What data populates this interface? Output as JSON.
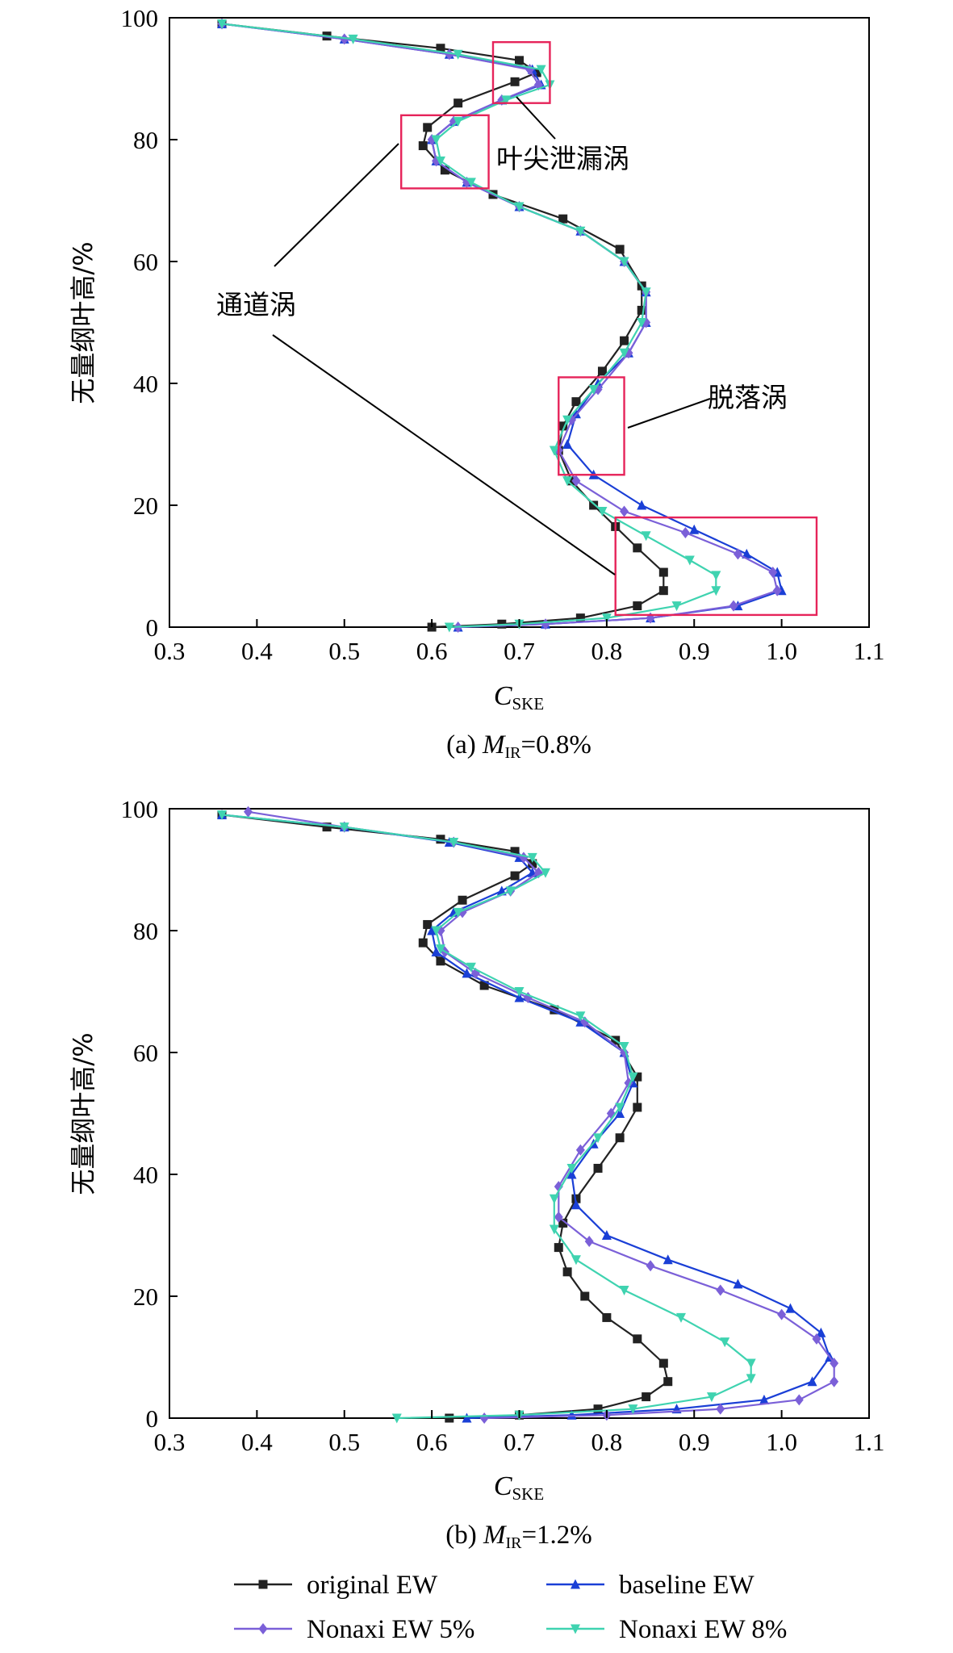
{
  "chart_data": [
    {
      "type": "line",
      "panel_id": "a",
      "caption": {
        "prefix": "(a) ",
        "var": "M",
        "sub": "IR",
        "rest": "=0.8%"
      },
      "xlabel": {
        "main": "C",
        "sub": "SKE"
      },
      "ylabel": "无量纲叶高/%",
      "xlim": [
        0.3,
        1.1
      ],
      "ylim": [
        0,
        100
      ],
      "xticks": [
        "0.3",
        "0.4",
        "0.5",
        "0.6",
        "0.7",
        "0.8",
        "0.9",
        "1.0",
        "1.1"
      ],
      "yticks": [
        "0",
        "20",
        "40",
        "60",
        "80",
        "100"
      ],
      "grid": false,
      "annotations": [
        {
          "text": "叶尖泄漏涡"
        },
        {
          "text": "通道涡"
        },
        {
          "text": "脱落涡"
        }
      ],
      "boxes": [
        {
          "x0": 0.67,
          "x1": 0.735,
          "y0": 86,
          "y1": 96
        },
        {
          "x0": 0.565,
          "x1": 0.665,
          "y0": 72,
          "y1": 84
        },
        {
          "x0": 0.745,
          "x1": 0.82,
          "y0": 25,
          "y1": 41
        },
        {
          "x0": 0.81,
          "x1": 1.04,
          "y0": 2,
          "y1": 18
        }
      ],
      "series": [
        {
          "name": "original EW",
          "x": [
            0.6,
            0.68,
            0.77,
            0.835,
            0.865,
            0.865,
            0.835,
            0.81,
            0.785,
            0.76,
            0.745,
            0.75,
            0.765,
            0.795,
            0.82,
            0.84,
            0.84,
            0.815,
            0.75,
            0.67,
            0.615,
            0.59,
            0.595,
            0.63,
            0.695,
            0.72,
            0.7,
            0.61,
            0.48,
            0.36
          ],
          "y": [
            0,
            0.5,
            1.5,
            3.5,
            6,
            9,
            13,
            16.5,
            20,
            24,
            29,
            33,
            37,
            42,
            47,
            52,
            56,
            62,
            67,
            71,
            75,
            79,
            82,
            86,
            89.5,
            91,
            93,
            95,
            97,
            99
          ]
        },
        {
          "name": "baseline EW",
          "x": [
            0.63,
            0.73,
            0.85,
            0.95,
            1.0,
            0.995,
            0.96,
            0.9,
            0.84,
            0.785,
            0.755,
            0.765,
            0.79,
            0.825,
            0.845,
            0.845,
            0.82,
            0.77,
            0.7,
            0.64,
            0.605,
            0.6,
            0.625,
            0.68,
            0.725,
            0.715,
            0.62,
            0.5,
            0.36
          ],
          "y": [
            0,
            0.5,
            1.5,
            3.5,
            6,
            9,
            12,
            16,
            20,
            25,
            30,
            35,
            40,
            45,
            50,
            55,
            60,
            65,
            69,
            73,
            76.5,
            80,
            83,
            86.5,
            89,
            91.5,
            94,
            96.5,
            99
          ]
        },
        {
          "name": "Nonaxi EW 5%",
          "x": [
            0.63,
            0.73,
            0.85,
            0.945,
            0.995,
            0.99,
            0.95,
            0.89,
            0.82,
            0.765,
            0.745,
            0.76,
            0.79,
            0.825,
            0.845,
            0.845,
            0.82,
            0.77,
            0.7,
            0.64,
            0.605,
            0.6,
            0.625,
            0.68,
            0.722,
            0.712,
            0.62,
            0.5,
            0.36
          ],
          "y": [
            0,
            0.5,
            1.5,
            3.5,
            6,
            9,
            12,
            15.5,
            19,
            24,
            29,
            34,
            39,
            45,
            50,
            55,
            60,
            65,
            69,
            73,
            76.5,
            80,
            83,
            86.5,
            89,
            91.5,
            94,
            96.5,
            99
          ]
        },
        {
          "name": "Nonaxi EW 8%",
          "x": [
            0.62,
            0.7,
            0.8,
            0.88,
            0.925,
            0.925,
            0.895,
            0.845,
            0.795,
            0.755,
            0.74,
            0.755,
            0.785,
            0.82,
            0.84,
            0.845,
            0.82,
            0.77,
            0.7,
            0.645,
            0.61,
            0.605,
            0.63,
            0.685,
            0.735,
            0.725,
            0.63,
            0.51,
            0.36
          ],
          "y": [
            0,
            0.5,
            1.5,
            3.5,
            6,
            8.5,
            11,
            15,
            19,
            24,
            29,
            34,
            39,
            45,
            50,
            55,
            60,
            65,
            69,
            73,
            76.5,
            80,
            83,
            86.5,
            89,
            91.5,
            94,
            96.5,
            99
          ]
        }
      ]
    },
    {
      "type": "line",
      "panel_id": "b",
      "caption": {
        "prefix": "(b)  ",
        "var": "M",
        "sub": "IR",
        "rest": "=1.2%"
      },
      "xlabel": {
        "main": "C",
        "sub": "SKE"
      },
      "ylabel": "无量纲叶高/%",
      "xlim": [
        0.3,
        1.1
      ],
      "ylim": [
        0,
        100
      ],
      "xticks": [
        "0.3",
        "0.4",
        "0.5",
        "0.6",
        "0.7",
        "0.8",
        "0.9",
        "1.0",
        "1.1"
      ],
      "yticks": [
        "0",
        "20",
        "40",
        "60",
        "80",
        "100"
      ],
      "grid": false,
      "annotations": [],
      "boxes": [],
      "series": [
        {
          "name": "original EW",
          "x": [
            0.62,
            0.7,
            0.79,
            0.845,
            0.87,
            0.865,
            0.835,
            0.8,
            0.775,
            0.755,
            0.745,
            0.75,
            0.765,
            0.79,
            0.815,
            0.835,
            0.835,
            0.81,
            0.74,
            0.66,
            0.61,
            0.59,
            0.595,
            0.635,
            0.695,
            0.715,
            0.695,
            0.61,
            0.48,
            0.36
          ],
          "y": [
            0,
            0.5,
            1.5,
            3.5,
            6,
            9,
            13,
            16.5,
            20,
            24,
            28,
            32,
            36,
            41,
            46,
            51,
            56,
            62,
            67,
            71,
            75,
            78,
            81,
            85,
            89,
            91,
            93,
            95,
            97,
            99
          ]
        },
        {
          "name": "baseline EW",
          "x": [
            0.64,
            0.76,
            0.88,
            0.98,
            1.035,
            1.055,
            1.045,
            1.01,
            0.95,
            0.87,
            0.8,
            0.765,
            0.76,
            0.785,
            0.815,
            0.83,
            0.82,
            0.77,
            0.7,
            0.64,
            0.605,
            0.6,
            0.625,
            0.68,
            0.715,
            0.7,
            0.62,
            0.5,
            0.36
          ],
          "y": [
            0,
            0.5,
            1.5,
            3,
            6,
            10,
            14,
            18,
            22,
            26,
            30,
            35,
            40,
            45,
            50,
            55,
            60,
            65,
            69,
            73,
            76.5,
            80,
            83,
            86.5,
            89.5,
            92,
            94.5,
            97,
            99
          ]
        },
        {
          "name": "Nonaxi EW 5%",
          "x": [
            0.66,
            0.8,
            0.93,
            1.02,
            1.06,
            1.06,
            1.04,
            1.0,
            0.93,
            0.85,
            0.78,
            0.745,
            0.745,
            0.77,
            0.805,
            0.825,
            0.82,
            0.775,
            0.71,
            0.65,
            0.615,
            0.61,
            0.635,
            0.69,
            0.722,
            0.705,
            0.625,
            0.5,
            0.39
          ],
          "y": [
            0,
            0.5,
            1.5,
            3,
            6,
            9,
            13,
            17,
            21,
            25,
            29,
            33,
            38,
            44,
            50,
            55,
            60,
            65,
            69,
            73,
            76.5,
            80,
            83,
            86.5,
            89.5,
            92,
            94.5,
            97,
            99.5
          ]
        },
        {
          "name": "Nonaxi EW 8%",
          "x": [
            0.56,
            0.7,
            0.83,
            0.92,
            0.965,
            0.965,
            0.935,
            0.885,
            0.82,
            0.765,
            0.74,
            0.74,
            0.76,
            0.79,
            0.815,
            0.83,
            0.82,
            0.77,
            0.7,
            0.645,
            0.61,
            0.605,
            0.63,
            0.69,
            0.73,
            0.715,
            0.625,
            0.5,
            0.36
          ],
          "y": [
            0,
            0.5,
            1.5,
            3.5,
            6.5,
            9,
            12.5,
            16.5,
            21,
            26,
            31,
            36,
            41,
            46,
            51,
            56,
            61,
            66,
            70,
            74,
            77,
            80,
            83,
            86.5,
            89.5,
            92,
            94.5,
            97,
            99
          ]
        }
      ]
    }
  ],
  "legend": {
    "placement": "bottom",
    "items": [
      {
        "label": "original EW",
        "color": "#222222",
        "marker": "square"
      },
      {
        "label": "baseline EW",
        "color": "#1a3fd6",
        "marker": "triangle"
      },
      {
        "label": "Nonaxi EW 5%",
        "color": "#7b60d8",
        "marker": "diamond"
      },
      {
        "label": "Nonaxi EW 8%",
        "color": "#3fd3b0",
        "marker": "triangle-down"
      }
    ]
  },
  "colors": {
    "original EW": "#222222",
    "baseline EW": "#1a3fd6",
    "Nonaxi EW 5%": "#7b60d8",
    "Nonaxi EW 8%": "#3fd3b0",
    "annotation_box": "#e6245a",
    "axis": "#000000"
  }
}
